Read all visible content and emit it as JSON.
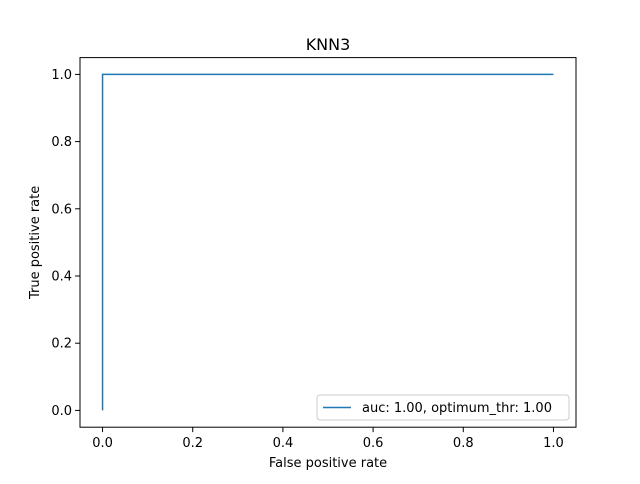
{
  "chart_data": {
    "type": "line",
    "title": "KNN3",
    "xlabel": "False positive rate",
    "ylabel": "True positive rate",
    "xlim": [
      -0.05,
      1.05
    ],
    "ylim": [
      -0.05,
      1.05
    ],
    "grid": false,
    "x_ticks": [
      "0.0",
      "0.2",
      "0.4",
      "0.6",
      "0.8",
      "1.0"
    ],
    "y_ticks": [
      "0.0",
      "0.2",
      "0.4",
      "0.6",
      "0.8",
      "1.0"
    ],
    "legend_position": "lower-right",
    "series": [
      {
        "name": "auc: 1.00, optimum_thr: 1.00",
        "color": "#1f77b4",
        "x": [
          0.0,
          0.0,
          1.0
        ],
        "y": [
          0.0,
          1.0,
          1.0
        ]
      }
    ]
  }
}
